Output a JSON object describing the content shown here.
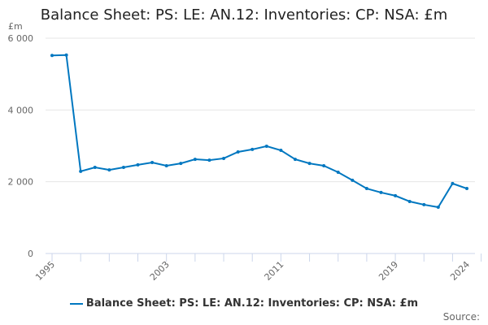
{
  "chart_data": {
    "type": "line",
    "title": "Balance Sheet: PS: LE: AN.12: Inventories: CP: NSA: £m",
    "ylabel": "£m",
    "ylim": [
      0,
      6000
    ],
    "yticks": [
      0,
      2000,
      4000,
      6000
    ],
    "ytick_labels": [
      "0",
      "2 000",
      "4 000",
      "6 000"
    ],
    "xticks_labeled": [
      1995,
      2003,
      2011,
      2019,
      2024
    ],
    "x": [
      1995,
      1996,
      1997,
      1998,
      1999,
      2000,
      2001,
      2002,
      2003,
      2004,
      2005,
      2006,
      2007,
      2008,
      2009,
      2010,
      2011,
      2012,
      2013,
      2014,
      2015,
      2016,
      2017,
      2018,
      2019,
      2020,
      2021,
      2022,
      2023,
      2024
    ],
    "series": [
      {
        "name": "Balance Sheet: PS: LE: AN.12: Inventories: CP: NSA: £m",
        "color": "#0077c0",
        "values": [
          5520,
          5530,
          2290,
          2400,
          2330,
          2400,
          2470,
          2535,
          2445,
          2510,
          2625,
          2600,
          2650,
          2830,
          2900,
          2990,
          2875,
          2625,
          2510,
          2445,
          2265,
          2040,
          1810,
          1700,
          1610,
          1450,
          1360,
          1290,
          1950,
          1810
        ]
      }
    ],
    "legend": "bottom",
    "grid": true
  },
  "source_label": "Source:"
}
